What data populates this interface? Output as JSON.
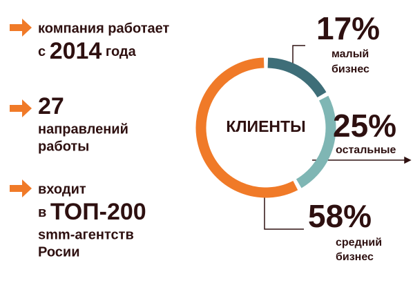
{
  "facts": [
    {
      "line1": "компания работает",
      "prefix": "с",
      "number": "2014",
      "suffix": "года"
    },
    {
      "number": "27",
      "line1": "направлений",
      "line2": "работы"
    },
    {
      "line1": "входит",
      "prefix": "в",
      "number": "ТОП-200",
      "line2": "smm-агентств",
      "line3": "Росии"
    }
  ],
  "chart_data": {
    "type": "donut",
    "center_label": "КЛИЕНТЫ",
    "labels": [
      [
        "малый",
        "бизнес"
      ],
      [
        "остальные"
      ],
      [
        "средний",
        "бизнес"
      ]
    ],
    "values": [
      17,
      25,
      58
    ],
    "value_labels": [
      "17%",
      "25%",
      "58%"
    ],
    "colors": [
      "#3e6e78",
      "#7fb6b4",
      "#f07a28"
    ]
  }
}
